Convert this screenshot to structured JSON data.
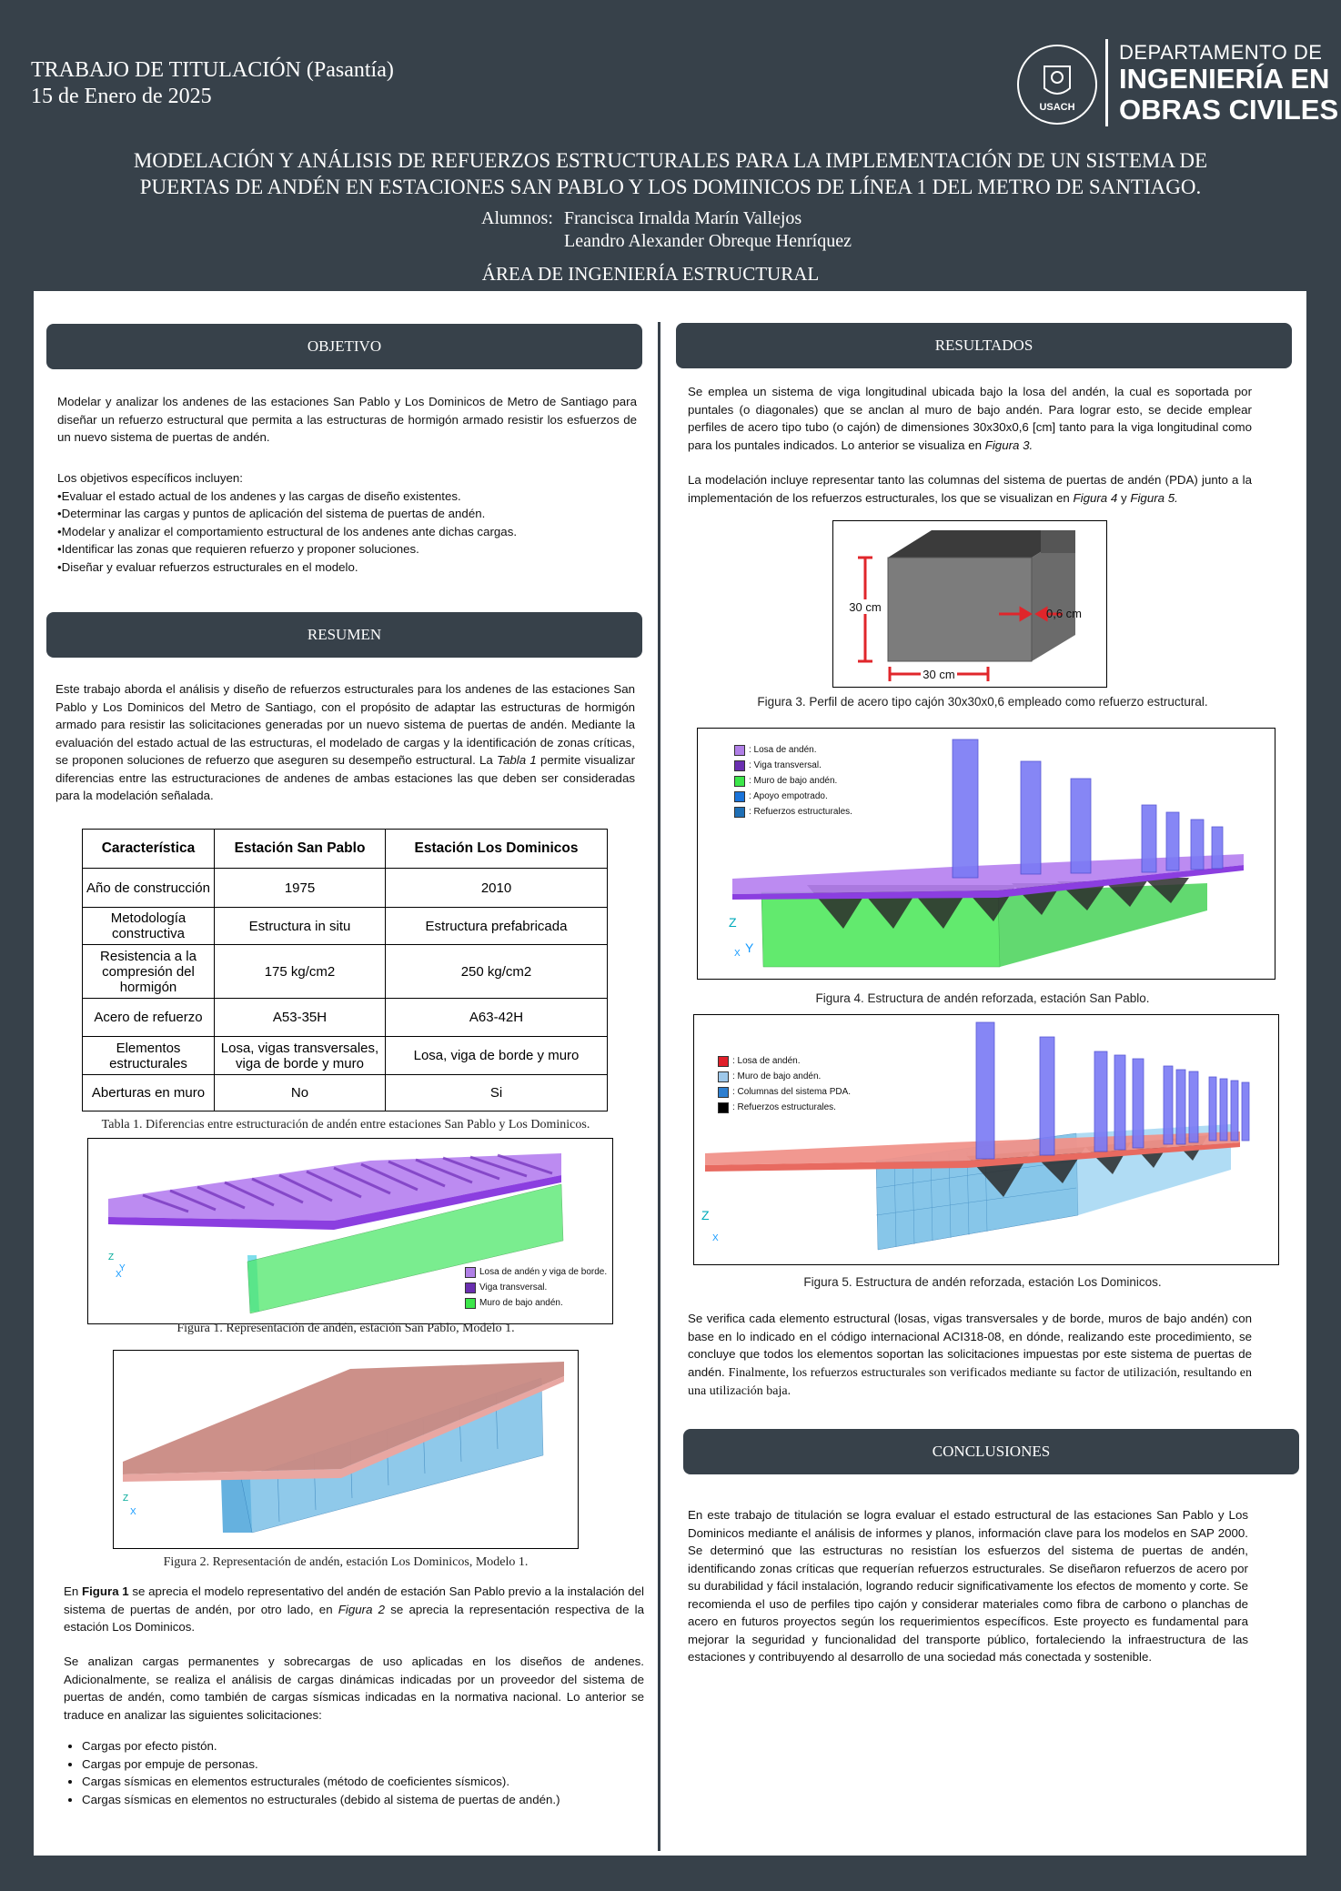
{
  "header": {
    "line1": "TRABAJO DE TITULACIÓN (Pasantía)",
    "line2": "15 de Enero de 2025",
    "dept_small": "DEPARTAMENTO DE",
    "dept_big1": "INGENIERÍA EN",
    "dept_big2": "OBRAS CIVILES",
    "logo_text": "USACH",
    "title1": "MODELACIÓN Y ANÁLISIS DE REFUERZOS ESTRUCTURALES PARA LA IMPLEMENTACIÓN DE UN SISTEMA DE",
    "title2": "PUERTAS DE ANDÉN EN ESTACIONES SAN PABLO Y LOS DOMINICOS DE LÍNEA 1 DEL METRO DE SANTIAGO.",
    "students_label": "Alumnos:",
    "student1": "Francisca Irnalda Marín Vallejos",
    "student2": "Leandro Alexander Obreque Henríquez",
    "area": "ÁREA DE INGENIERÍA ESTRUCTURAL"
  },
  "objetivo": {
    "heading": "OBJETIVO",
    "intro": "Modelar y analizar los andenes de las estaciones San Pablo y Los Dominicos de Metro de Santiago para diseñar un refuerzo estructural que permita a las estructuras de hormigón armado resistir los esfuerzos de un nuevo sistema de puertas de andén.",
    "list_title": "Los objetivos específicos incluyen:",
    "items": [
      "•Evaluar el estado actual de los andenes y las cargas de diseño existentes.",
      "•Determinar las cargas y puntos de aplicación del sistema de puertas de andén.",
      "•Modelar y analizar el comportamiento estructural de los andenes ante dichas cargas.",
      "•Identificar las zonas que requieren refuerzo y proponer soluciones.",
      "•Diseñar y evaluar refuerzos estructurales en el modelo."
    ]
  },
  "resumen": {
    "heading": "RESUMEN",
    "text_a": "Este trabajo aborda el análisis y diseño de refuerzos estructurales para los andenes de las estaciones San Pablo y Los Dominicos del Metro de Santiago, con el propósito de adaptar las estructuras de hormigón armado para resistir las solicitaciones generadas por un nuevo sistema de puertas de andén. Mediante la evaluación del estado actual de las estructuras, el modelado de cargas y la identificación de zonas críticas, se proponen soluciones de refuerzo que aseguren su desempeño estructural. La ",
    "text_em": "Tabla 1",
    "text_b": " permite visualizar diferencias entre las estructuraciones de andenes de ambas estaciones las que deben ser consideradas para la modelación señalada.",
    "table": {
      "headers": [
        "Característica",
        "Estación San Pablo",
        "Estación Los Dominicos"
      ],
      "rows": [
        [
          "Año de construcción",
          "1975",
          "2010"
        ],
        [
          "Metodología constructiva",
          "Estructura in situ",
          "Estructura prefabricada"
        ],
        [
          "Resistencia a la compresión del hormigón",
          "175 kg/cm2",
          "250 kg/cm2"
        ],
        [
          "Acero de refuerzo",
          "A53-35H",
          "A63-42H"
        ],
        [
          "Elementos estructurales",
          "Losa, vigas transversales, viga de borde y muro",
          "Losa, viga de borde y muro"
        ],
        [
          "Aberturas en muro",
          "No",
          "Si"
        ]
      ],
      "caption": "Tabla 1. Diferencias entre estructuración de andén entre estaciones San Pablo y Los Dominicos."
    },
    "fig1": {
      "caption": "Figura 1. Representación de andén, estación San Pablo, Modelo 1.",
      "legend": [
        "Losa de andén y viga de borde.",
        "Viga transversal.",
        "Muro de bajo andén."
      ],
      "legend_colors": [
        "#b07fe6",
        "#6a2fb0",
        "#3ce64a"
      ]
    },
    "fig2": {
      "caption": "Figura 2. Representación de andén, estación Los Dominicos, Modelo 1."
    },
    "para2_a": "En ",
    "para2_em1": "Figura 1",
    "para2_b": " se aprecia el modelo representativo del andén de estación San Pablo previo a la instalación del sistema de puertas de andén, por otro lado, en ",
    "para2_em2": "Figura 2",
    "para2_c": " se aprecia la representación respectiva de la estación Los Dominicos.",
    "para3": "Se analizan cargas permanentes y sobrecargas de uso aplicadas en los diseños de andenes. Adicionalmente, se realiza el análisis de cargas dinámicas indicadas por un proveedor del sistema de puertas de andén, como también de cargas sísmicas indicadas en la normativa nacional. Lo anterior se traduce en analizar las siguientes solicitaciones:",
    "loads": [
      "Cargas por efecto pistón.",
      "Cargas por empuje de personas.",
      "Cargas sísmicas en elementos estructurales (método de coeficientes sísmicos).",
      "Cargas sísmicas en elementos no estructurales (debido al sistema de puertas de andén.)"
    ]
  },
  "resultados": {
    "heading": "RESULTADOS",
    "p1_a": "Se emplea un sistema de viga longitudinal ubicada bajo la losa del andén, la cual es soportada por puntales (o diagonales) que se anclan al muro de bajo andén. Para lograr esto, se decide emplear perfiles de acero tipo tubo (o cajón) de dimensiones 30x30x0,6 [cm] tanto para la viga longitudinal como para los puntales indicados. Lo anterior se visualiza en ",
    "p1_em": "Figura 3.",
    "p2_a": "La modelación incluye representar tanto las columnas del sistema de puertas de andén (PDA) junto a la implementación de los refuerzos estructurales, los que se visualizan en ",
    "p2_em1": "Figura 4",
    "p2_b": " y ",
    "p2_em2": "Figura 5.",
    "fig3": {
      "dim_h": "30 cm",
      "dim_w": "30 cm",
      "dim_t": "0,6 cm",
      "caption": "Figura 3. Perfil de acero tipo cajón 30x30x0,6 empleado como refuerzo estructural."
    },
    "fig4": {
      "legend": [
        ": Losa de andén.",
        ": Viga transversal.",
        ": Muro de bajo andén.",
        ": Apoyo empotrado.",
        ": Refuerzos estructurales."
      ],
      "legend_colors": [
        "#b07fe6",
        "#6a2fb0",
        "#3ce64a",
        "#1a73d9",
        "#1f6fb5"
      ],
      "caption": "Figura 4. Estructura de andén reforzada, estación San Pablo."
    },
    "fig5": {
      "legend": [
        ": Losa de andén.",
        ": Muro de bajo andén.",
        ": Columnas del sistema PDA.",
        ": Refuerzos estructurales."
      ],
      "legend_colors": [
        "#e0202a",
        "#9ec8ea",
        "#2e7fd0",
        "#000000"
      ],
      "caption": "Figura 5. Estructura de andén reforzada, estación Los Dominicos."
    },
    "p3_a": "Se verifica cada elemento estructural (losas, vigas transversales y de borde, muros de bajo andén) con base en lo indicado en el código internacional ACI318-08, en dónde, realizando este procedimiento, se concluye que todos los elementos soportan las solicitaciones impuestas por este sistema de puertas de andén. ",
    "p3_b": "Finalmente, los refuerzos estructurales son verificados mediante su factor de utilización, resultando en una utilización baja."
  },
  "conclusiones": {
    "heading": "CONCLUSIONES",
    "text": "En este trabajo de titulación se logra evaluar el estado estructural de las estaciones San Pablo y Los Dominicos mediante el análisis de informes y planos, información clave para los modelos en SAP 2000. Se determinó que las estructuras no resistían los esfuerzos del sistema de puertas de andén, identificando zonas críticas que requerían refuerzos estructurales. Se diseñaron refuerzos de acero por su durabilidad y fácil instalación, logrando reducir significativamente los efectos de momento y corte. Se recomienda el uso de perfiles tipo cajón y considerar materiales como fibra de carbono o planchas de acero en futuros proyectos según los requerimientos específicos. Este proyecto es fundamental para mejorar la seguridad y funcionalidad del transporte público, fortaleciendo la infraestructura de las estaciones y contribuyendo al desarrollo de una sociedad más conectada y sostenible."
  }
}
